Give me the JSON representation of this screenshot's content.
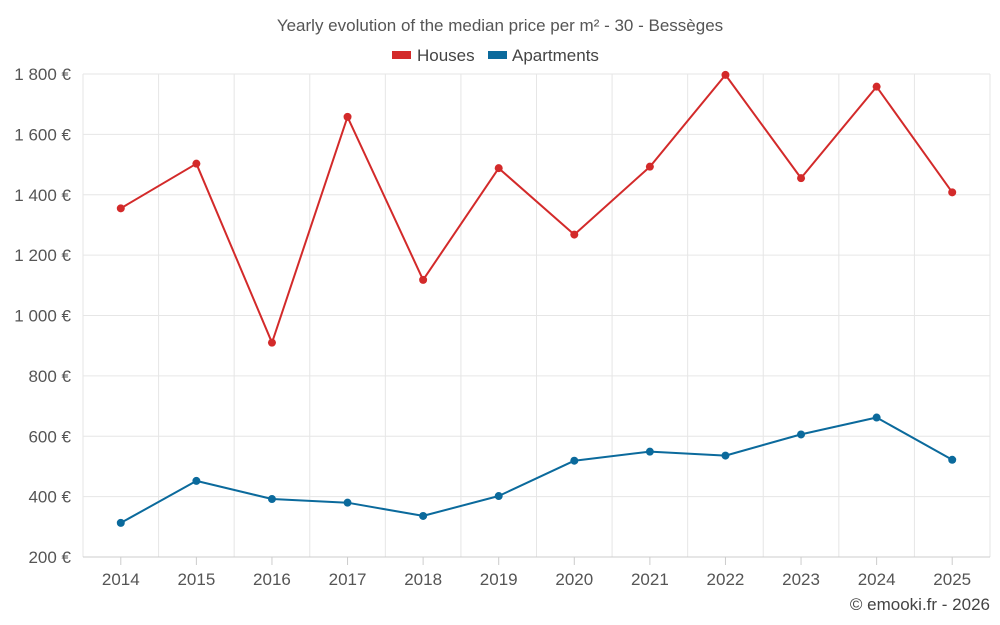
{
  "chart_data": {
    "type": "line",
    "title": "Yearly evolution of the median price per m² - 30 - Bessèges",
    "xlabel": "",
    "ylabel": "",
    "categories": [
      "2014",
      "2015",
      "2016",
      "2017",
      "2018",
      "2019",
      "2020",
      "2021",
      "2022",
      "2023",
      "2024",
      "2025"
    ],
    "ylim": [
      200,
      1800
    ],
    "yticks": [
      200,
      400,
      600,
      800,
      1000,
      1200,
      1400,
      1600,
      1800
    ],
    "ytick_labels": [
      "200 €",
      "400 €",
      "600 €",
      "800 €",
      "1 000 €",
      "1 200 €",
      "1 400 €",
      "1 600 €",
      "1 800 €"
    ],
    "grid": true,
    "legend_position": "top-center",
    "series": [
      {
        "name": "Houses",
        "color": "#d32a2a",
        "values": [
          1355,
          1503,
          910,
          1658,
          1118,
          1488,
          1268,
          1493,
          1797,
          1455,
          1758,
          1408
        ]
      },
      {
        "name": "Apartments",
        "color": "#0b6a9c",
        "values": [
          313,
          452,
          392,
          380,
          336,
          402,
          519,
          549,
          536,
          606,
          662,
          522
        ]
      }
    ]
  },
  "footer": {
    "credit": "© emooki.fr - 2026"
  }
}
